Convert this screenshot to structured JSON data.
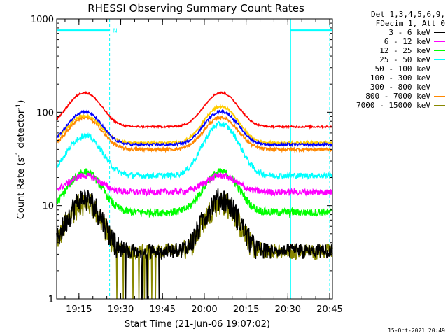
{
  "chart_data": {
    "type": "line",
    "title": "RHESSI Observing Summary Count Rates",
    "xlabel": "Start Time (21-Jun-06 19:07:02)",
    "ylabel_main": "Count Rate (s",
    "ylabel_sup1": "-1",
    "ylabel_mid": " detector",
    "ylabel_sup2": "-1",
    "ylabel_end": ")",
    "y_scale": "log",
    "ylim": [
      1,
      1000
    ],
    "y_ticks": [
      {
        "value": 1,
        "label": "1"
      },
      {
        "value": 10,
        "label": "10"
      },
      {
        "value": 100,
        "label": "100"
      },
      {
        "value": 1000,
        "label": "1000"
      }
    ],
    "xlim_minutes": [
      0,
      99
    ],
    "x_ticks": [
      {
        "minute": 8,
        "label": "19:15"
      },
      {
        "minute": 23,
        "label": "19:30"
      },
      {
        "minute": 38,
        "label": "19:45"
      },
      {
        "minute": 53,
        "label": "20:00"
      },
      {
        "minute": 68,
        "label": "20:15"
      },
      {
        "minute": 83,
        "label": "20:30"
      },
      {
        "minute": 98,
        "label": "20:45"
      }
    ],
    "minor_ticks_per_major": 3,
    "attenuator_level": 750,
    "attenuator_segments": [
      [
        0,
        19
      ],
      [
        84,
        99
      ]
    ],
    "attenuator_marker": {
      "minute": 21,
      "label": "N"
    },
    "night_lines_solid": [
      0,
      84
    ],
    "night_lines_dashed": [
      19,
      98
    ],
    "peaks_minutes": [
      10,
      59
    ],
    "legend_header": [
      "Det 1,3,4,5,6,9,",
      "FDecim 1, Att 0"
    ],
    "series": [
      {
        "name": "3 - 6 keV",
        "color": "#000000",
        "base": 3.0,
        "peak": 12,
        "noise": 0.3,
        "floor": 3.0
      },
      {
        "name": "6 - 12 keV",
        "color": "#ff00ff",
        "base": 14,
        "peak": 21,
        "noise": 0.08
      },
      {
        "name": "12 - 25 keV",
        "color": "#00ff00",
        "base": 8.5,
        "peak": 23,
        "noise": 0.1
      },
      {
        "name": "25 - 50 keV",
        "color": "#00ffff",
        "base": 21,
        "peak": 56,
        "peak2": 75,
        "noise": 0.07
      },
      {
        "name": "50 - 100 keV",
        "color": "#ffcc00",
        "base": 47,
        "peak": 92,
        "peak2": 115,
        "noise": 0.03
      },
      {
        "name": "100 - 300 keV",
        "color": "#ff0000",
        "base": 70,
        "peak": 162,
        "noise": 0.02
      },
      {
        "name": "300 - 800 keV",
        "color": "#0000ff",
        "base": 45,
        "peak": 102,
        "noise": 0.03
      },
      {
        "name": "800 - 7000 keV",
        "color": "#ff8800",
        "base": 40,
        "peak": 88,
        "noise": 0.04
      },
      {
        "name": "7000 - 15000 keV",
        "color": "#888800",
        "base": 3.0,
        "peak": 11,
        "noise": 0.3,
        "floor": 3.0
      }
    ],
    "grid": false,
    "legend_position": "top-right-outside"
  },
  "footer": "15-Oct-2021 20:49"
}
